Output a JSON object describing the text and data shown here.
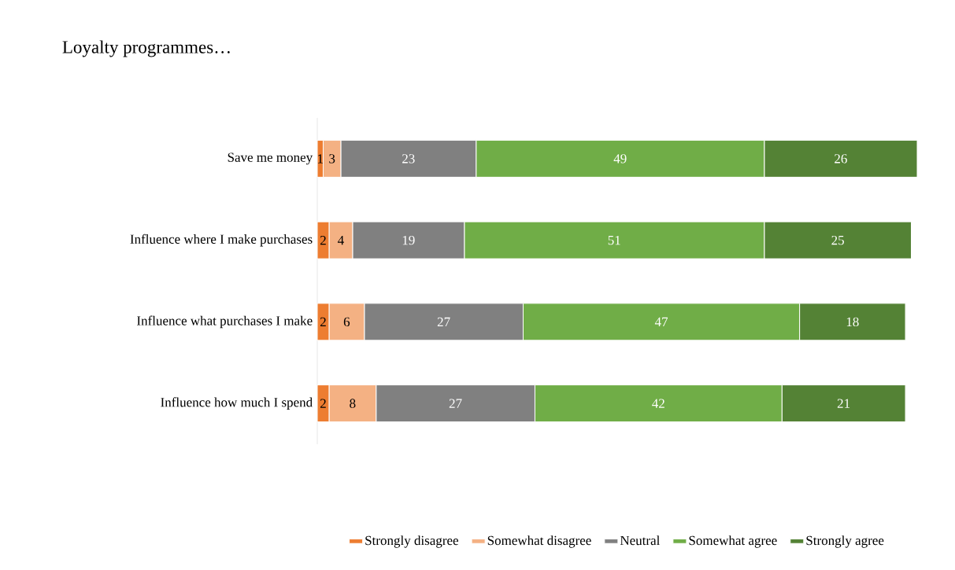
{
  "chart_data": {
    "type": "bar",
    "orientation": "horizontal",
    "stacked": true,
    "data_labels": true,
    "legend": "bottom",
    "title": "Loyalty programmes…",
    "categories": [
      "Save me money",
      "Influence where I make purchases",
      "Influence what purchases I make",
      "Influence how much I spend"
    ],
    "series": [
      {
        "name": "Strongly disagree",
        "color": "#ed7d31",
        "values": [
          1,
          2,
          2,
          2
        ]
      },
      {
        "name": "Somewhat disagree",
        "color": "#f4b183",
        "values": [
          3,
          4,
          6,
          8
        ]
      },
      {
        "name": "Neutral",
        "color": "#808080",
        "values": [
          23,
          19,
          27,
          27
        ]
      },
      {
        "name": "Somewhat agree",
        "color": "#70ad47",
        "values": [
          49,
          51,
          47,
          42
        ]
      },
      {
        "name": "Strongly agree",
        "color": "#548235",
        "values": [
          26,
          25,
          18,
          21
        ]
      }
    ]
  }
}
